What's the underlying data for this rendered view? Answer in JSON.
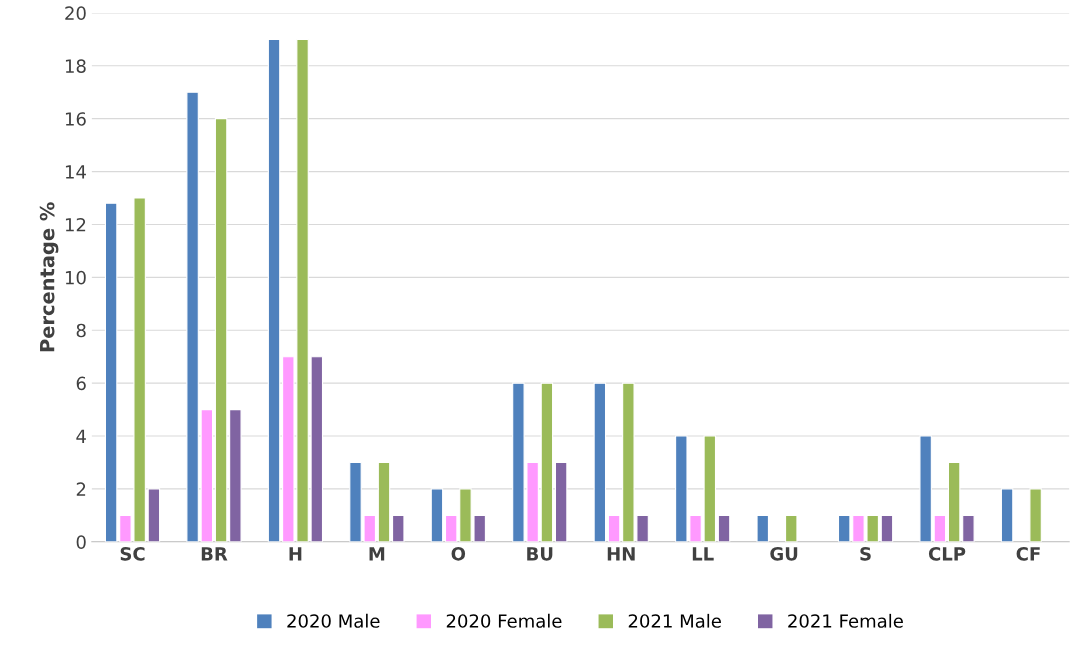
{
  "chart_data": {
    "type": "bar",
    "ylabel": "Percentage %",
    "categories": [
      "SC",
      "BR",
      "H",
      "M",
      "O",
      "BU",
      "HN",
      "LL",
      "GU",
      "S",
      "CLP",
      "CF"
    ],
    "series": [
      {
        "name": "2020 Male",
        "color": "#4f81bd",
        "values": [
          12.8,
          17,
          19,
          3,
          2,
          6,
          6,
          4,
          1,
          1,
          4,
          2
        ]
      },
      {
        "name": "2020 Female",
        "color": "#ff99ff",
        "values": [
          1,
          5,
          7,
          1,
          1,
          3,
          1,
          1,
          null,
          1,
          1,
          null
        ]
      },
      {
        "name": "2021 Male",
        "color": "#9bbb59",
        "values": [
          13,
          16,
          19,
          3,
          2,
          6,
          6,
          4,
          1,
          1,
          3,
          2
        ]
      },
      {
        "name": "2021 Female",
        "color": "#8064a2",
        "values": [
          2,
          5,
          7,
          1,
          1,
          3,
          1,
          1,
          null,
          1,
          1,
          null
        ]
      }
    ],
    "ylim": [
      0,
      20
    ],
    "yticks": [
      0,
      2,
      4,
      6,
      8,
      10,
      12,
      14,
      16,
      18,
      20
    ],
    "grid": "y",
    "legend": "bottom"
  }
}
